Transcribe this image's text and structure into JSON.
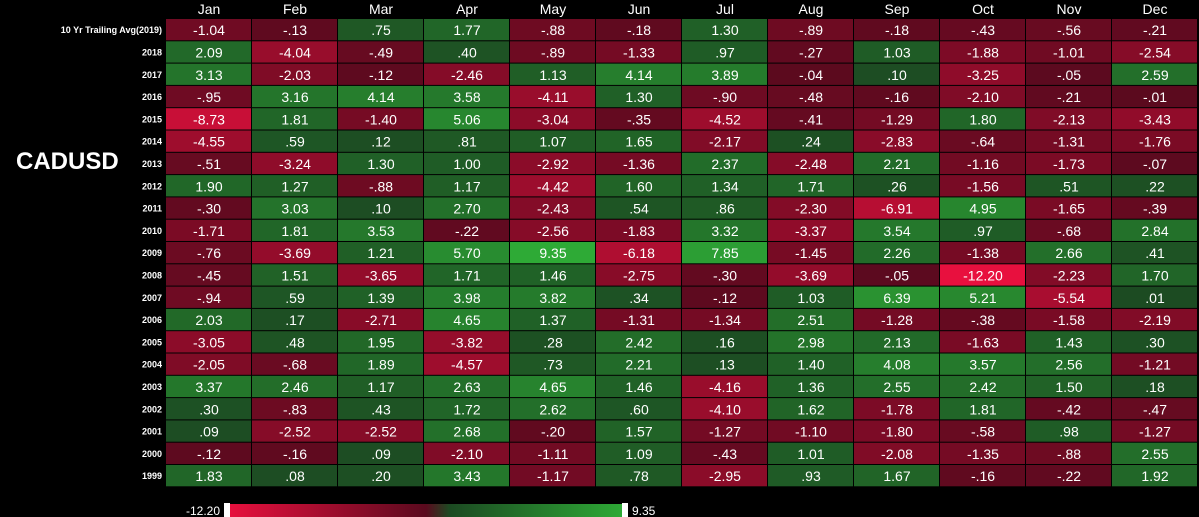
{
  "ticker": "CADUSD",
  "chart_data": {
    "type": "heatmap",
    "title": "",
    "columns": [
      "Jan",
      "Feb",
      "Mar",
      "Apr",
      "May",
      "Jun",
      "Jul",
      "Aug",
      "Sep",
      "Oct",
      "Nov",
      "Dec"
    ],
    "rows": [
      "10 Yr Trailing Avg(2019)",
      "2018",
      "2017",
      "2016",
      "2015",
      "2014",
      "2013",
      "2012",
      "2011",
      "2010",
      "2009",
      "2008",
      "2007",
      "2006",
      "2005",
      "2004",
      "2003",
      "2002",
      "2001",
      "2000",
      "1999"
    ],
    "values": [
      [
        -1.04,
        -0.13,
        0.75,
        1.77,
        -0.88,
        -0.18,
        1.3,
        -0.89,
        -0.18,
        -0.43,
        -0.56,
        -0.21
      ],
      [
        2.09,
        -4.04,
        -0.49,
        0.4,
        -0.89,
        -1.33,
        0.97,
        -0.27,
        1.03,
        -1.88,
        -1.01,
        -2.54
      ],
      [
        3.13,
        -2.03,
        -0.12,
        -2.46,
        1.13,
        4.14,
        3.89,
        -0.04,
        0.1,
        -3.25,
        -0.05,
        2.59
      ],
      [
        -0.95,
        3.16,
        4.14,
        3.58,
        -4.11,
        1.3,
        -0.9,
        -0.48,
        -0.16,
        -2.1,
        -0.21,
        -0.01
      ],
      [
        -8.73,
        1.81,
        -1.4,
        5.06,
        -3.04,
        -0.35,
        -4.52,
        -0.41,
        -1.29,
        1.8,
        -2.13,
        -3.43
      ],
      [
        -4.55,
        0.59,
        0.12,
        0.81,
        1.07,
        1.65,
        -2.17,
        0.24,
        -2.83,
        -0.64,
        -1.31,
        -1.76
      ],
      [
        -0.51,
        -3.24,
        1.3,
        1.0,
        -2.92,
        -1.36,
        2.37,
        -2.48,
        2.21,
        -1.16,
        -1.73,
        -0.07
      ],
      [
        1.9,
        1.27,
        -0.88,
        1.17,
        -4.42,
        1.6,
        1.34,
        1.71,
        0.26,
        -1.56,
        0.51,
        0.22
      ],
      [
        -0.3,
        3.03,
        0.1,
        2.7,
        -2.43,
        0.54,
        0.86,
        -2.3,
        -6.91,
        4.95,
        -1.65,
        -0.39
      ],
      [
        -1.71,
        1.81,
        3.53,
        -0.22,
        -2.56,
        -1.83,
        3.32,
        -3.37,
        3.54,
        0.97,
        -0.68,
        2.84
      ],
      [
        -0.76,
        -3.69,
        1.21,
        5.7,
        9.35,
        -6.18,
        7.85,
        -1.45,
        2.26,
        -1.38,
        2.66,
        0.41
      ],
      [
        -0.45,
        1.51,
        -3.65,
        1.71,
        1.46,
        -2.75,
        -0.3,
        -3.69,
        -0.05,
        -12.2,
        -2.23,
        1.7
      ],
      [
        -0.94,
        0.59,
        1.39,
        3.98,
        3.82,
        0.34,
        -0.12,
        1.03,
        6.39,
        5.21,
        -5.54,
        0.01
      ],
      [
        2.03,
        0.17,
        -2.71,
        4.65,
        1.37,
        -1.31,
        -1.34,
        2.51,
        -1.28,
        -0.38,
        -1.58,
        -2.19
      ],
      [
        -3.05,
        0.48,
        1.95,
        -3.82,
        0.28,
        2.42,
        0.16,
        2.98,
        2.13,
        -1.63,
        1.43,
        0.3
      ],
      [
        -2.05,
        -0.68,
        1.89,
        -4.57,
        0.73,
        2.21,
        0.13,
        1.4,
        4.08,
        3.57,
        2.56,
        -1.21
      ],
      [
        3.37,
        2.46,
        1.17,
        2.63,
        4.65,
        1.46,
        -4.16,
        1.36,
        2.55,
        2.42,
        1.5,
        0.18
      ],
      [
        0.3,
        -0.83,
        0.43,
        1.72,
        2.62,
        0.6,
        -4.1,
        1.62,
        -1.78,
        1.81,
        -0.42,
        -0.47
      ],
      [
        0.09,
        -2.52,
        -2.52,
        2.68,
        -0.2,
        1.57,
        -1.27,
        -1.1,
        -1.8,
        -0.58,
        0.98,
        -1.27
      ],
      [
        -0.12,
        -0.16,
        0.09,
        -2.1,
        -1.11,
        1.09,
        -0.43,
        1.01,
        -2.08,
        -1.35,
        -0.88,
        2.55
      ],
      [
        1.83,
        0.08,
        0.2,
        3.43,
        -1.17,
        0.78,
        -2.95,
        0.93,
        1.67,
        -0.16,
        -0.22,
        1.92
      ]
    ],
    "labels": [
      [
        "-1.04",
        "-.13",
        ".75",
        "1.77",
        "-.88",
        "-.18",
        "1.30",
        "-.89",
        "-.18",
        "-.43",
        "-.56",
        "-.21"
      ],
      [
        "2.09",
        "-4.04",
        "-.49",
        ".40",
        "-.89",
        "-1.33",
        ".97",
        "-.27",
        "1.03",
        "-1.88",
        "-1.01",
        "-2.54"
      ],
      [
        "3.13",
        "-2.03",
        "-.12",
        "-2.46",
        "1.13",
        "4.14",
        "3.89",
        "-.04",
        ".10",
        "-3.25",
        "-.05",
        "2.59"
      ],
      [
        "-.95",
        "3.16",
        "4.14",
        "3.58",
        "-4.11",
        "1.30",
        "-.90",
        "-.48",
        "-.16",
        "-2.10",
        "-.21",
        "-.01"
      ],
      [
        "-8.73",
        "1.81",
        "-1.40",
        "5.06",
        "-3.04",
        "-.35",
        "-4.52",
        "-.41",
        "-1.29",
        "1.80",
        "-2.13",
        "-3.43"
      ],
      [
        "-4.55",
        ".59",
        ".12",
        ".81",
        "1.07",
        "1.65",
        "-2.17",
        ".24",
        "-2.83",
        "-.64",
        "-1.31",
        "-1.76"
      ],
      [
        "-.51",
        "-3.24",
        "1.30",
        "1.00",
        "-2.92",
        "-1.36",
        "2.37",
        "-2.48",
        "2.21",
        "-1.16",
        "-1.73",
        "-.07"
      ],
      [
        "1.90",
        "1.27",
        "-.88",
        "1.17",
        "-4.42",
        "1.60",
        "1.34",
        "1.71",
        ".26",
        "-1.56",
        ".51",
        ".22"
      ],
      [
        "-.30",
        "3.03",
        ".10",
        "2.70",
        "-2.43",
        ".54",
        ".86",
        "-2.30",
        "-6.91",
        "4.95",
        "-1.65",
        "-.39"
      ],
      [
        "-1.71",
        "1.81",
        "3.53",
        "-.22",
        "-2.56",
        "-1.83",
        "3.32",
        "-3.37",
        "3.54",
        ".97",
        "-.68",
        "2.84"
      ],
      [
        "-.76",
        "-3.69",
        "1.21",
        "5.70",
        "9.35",
        "-6.18",
        "7.85",
        "-1.45",
        "2.26",
        "-1.38",
        "2.66",
        ".41"
      ],
      [
        "-.45",
        "1.51",
        "-3.65",
        "1.71",
        "1.46",
        "-2.75",
        "-.30",
        "-3.69",
        "-.05",
        "-12.20",
        "-2.23",
        "1.70"
      ],
      [
        "-.94",
        ".59",
        "1.39",
        "3.98",
        "3.82",
        ".34",
        "-.12",
        "1.03",
        "6.39",
        "5.21",
        "-5.54",
        ".01"
      ],
      [
        "2.03",
        ".17",
        "-2.71",
        "4.65",
        "1.37",
        "-1.31",
        "-1.34",
        "2.51",
        "-1.28",
        "-.38",
        "-1.58",
        "-2.19"
      ],
      [
        "-3.05",
        ".48",
        "1.95",
        "-3.82",
        ".28",
        "2.42",
        ".16",
        "2.98",
        "2.13",
        "-1.63",
        "1.43",
        ".30"
      ],
      [
        "-2.05",
        "-.68",
        "1.89",
        "-4.57",
        ".73",
        "2.21",
        ".13",
        "1.40",
        "4.08",
        "3.57",
        "2.56",
        "-1.21"
      ],
      [
        "3.37",
        "2.46",
        "1.17",
        "2.63",
        "4.65",
        "1.46",
        "-4.16",
        "1.36",
        "2.55",
        "2.42",
        "1.50",
        ".18"
      ],
      [
        ".30",
        "-.83",
        ".43",
        "1.72",
        "2.62",
        ".60",
        "-4.10",
        "1.62",
        "-1.78",
        "1.81",
        "-.42",
        "-.47"
      ],
      [
        ".09",
        "-2.52",
        "-2.52",
        "2.68",
        "-.20",
        "1.57",
        "-1.27",
        "-1.10",
        "-1.80",
        "-.58",
        ".98",
        "-1.27"
      ],
      [
        "-.12",
        "-.16",
        ".09",
        "-2.10",
        "-1.11",
        "1.09",
        "-.43",
        "1.01",
        "-2.08",
        "-1.35",
        "-.88",
        "2.55"
      ],
      [
        "1.83",
        ".08",
        ".20",
        "3.43",
        "-1.17",
        ".78",
        "-2.95",
        ".93",
        "1.67",
        "-.16",
        "-.22",
        "1.92"
      ]
    ],
    "color_scale": {
      "min": -12.2,
      "max": 9.35,
      "min_label": "-12.20",
      "max_label": "9.35",
      "negative_colors": [
        "#5a0a1e",
        "#e8103e"
      ],
      "positive_colors": [
        "#1c4a22",
        "#2eaa36"
      ]
    }
  }
}
